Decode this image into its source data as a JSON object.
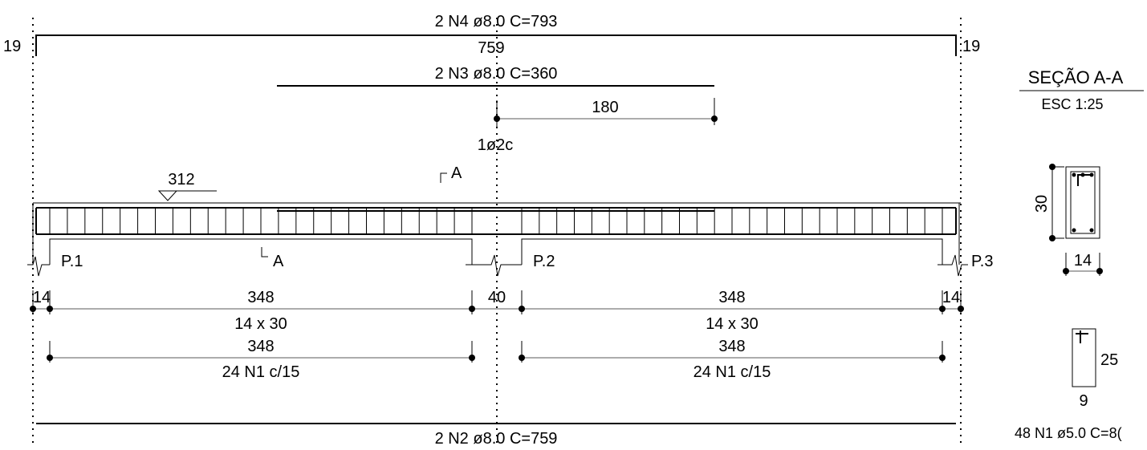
{
  "bars": {
    "n4": {
      "label": "2 N4 ø8.0  C=793",
      "length": "759",
      "hook_left": "19",
      "hook_right": "19"
    },
    "n3": {
      "label": "2 N3 ø8.0  C=360",
      "anchor": "180"
    },
    "n2": {
      "label": "2 N2 ø8.0  C=759"
    }
  },
  "annotations": {
    "one_bar_label": "1ø2c",
    "level_label": "312",
    "section_mark_top": "A",
    "section_mark_bottom": "A"
  },
  "supports": {
    "p1": "P.1",
    "p2": "P.2",
    "p3": "P.3"
  },
  "dimensions": {
    "support_left": "14",
    "support_middle": "40",
    "support_right": "14",
    "span_left": "348",
    "span_right": "348",
    "section_left": "14 x 30",
    "section_right": "14 x 30",
    "stirrup_span_left": "348",
    "stirrup_span_right": "348",
    "stirrup_label_left": "24 N1 c/15",
    "stirrup_label_right": "24 N1 c/15"
  },
  "section": {
    "title": "SEÇÃO A-A",
    "scale": "ESC 1:25",
    "height": "30",
    "width": "14"
  },
  "stirrup_detail": {
    "height": "25",
    "width": "9",
    "label": "48 N1 ø5.0  C=8("
  }
}
